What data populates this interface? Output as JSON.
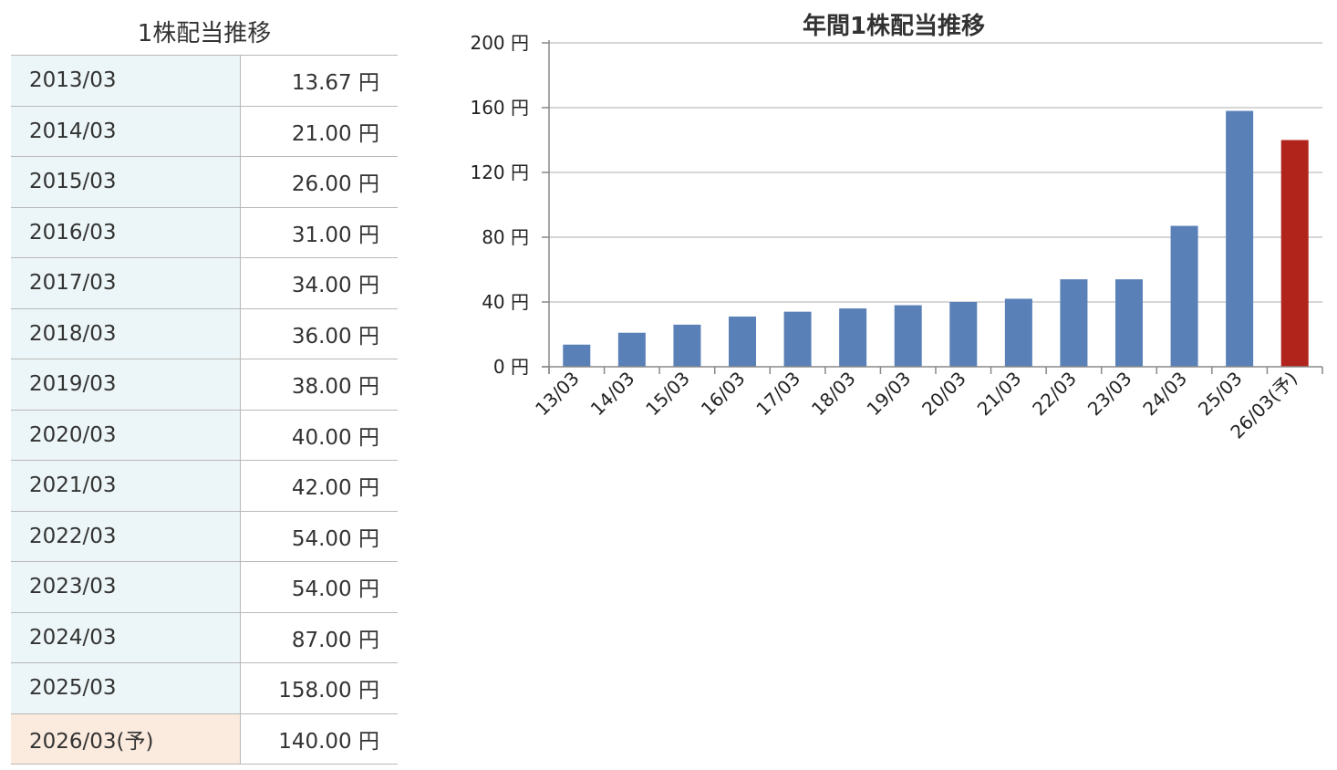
{
  "table": {
    "title": "1株配当推移",
    "rows": [
      {
        "year": "2013/03",
        "amount": "13.67 円"
      },
      {
        "year": "2014/03",
        "amount": "21.00 円"
      },
      {
        "year": "2015/03",
        "amount": "26.00 円"
      },
      {
        "year": "2016/03",
        "amount": "31.00 円"
      },
      {
        "year": "2017/03",
        "amount": "34.00 円"
      },
      {
        "year": "2018/03",
        "amount": "36.00 円"
      },
      {
        "year": "2019/03",
        "amount": "38.00 円"
      },
      {
        "year": "2020/03",
        "amount": "40.00 円"
      },
      {
        "year": "2021/03",
        "amount": "42.00 円"
      },
      {
        "year": "2022/03",
        "amount": "54.00 円"
      },
      {
        "year": "2023/03",
        "amount": "54.00 円"
      },
      {
        "year": "2024/03",
        "amount": "87.00 円"
      },
      {
        "year": "2025/03",
        "amount": "158.00 円"
      },
      {
        "year": "2026/03(予)",
        "amount": "140.00 円",
        "forecast": true
      }
    ]
  },
  "chart_data": {
    "type": "bar",
    "title": "年間1株配当推移",
    "categories": [
      "13/03",
      "14/03",
      "15/03",
      "16/03",
      "17/03",
      "18/03",
      "19/03",
      "20/03",
      "21/03",
      "22/03",
      "23/03",
      "24/03",
      "25/03",
      "26/03(予)"
    ],
    "values": [
      13.67,
      21,
      26,
      31,
      34,
      36,
      38,
      40,
      42,
      54,
      54,
      87,
      158,
      140
    ],
    "forecast_index": 13,
    "ylim": [
      0,
      200
    ],
    "yticks": [
      0,
      40,
      80,
      120,
      160,
      200
    ],
    "ytick_labels": [
      "0 円",
      "40 円",
      "80 円",
      "120 円",
      "160 円",
      "200 円"
    ],
    "xlabel": "",
    "ylabel": "",
    "grid": true,
    "colors": {
      "actual": "#5a80b8",
      "forecast": "#b0241b",
      "grid": "#c8c8c8",
      "axis": "#888888"
    }
  }
}
